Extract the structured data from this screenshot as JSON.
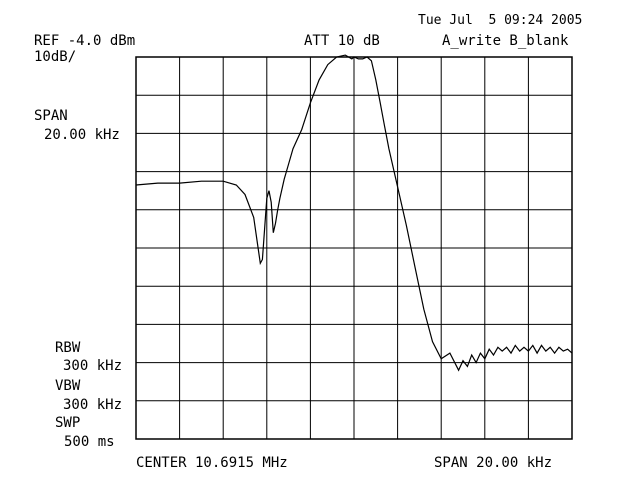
{
  "header": {
    "ref_level": "REF -4.0 dBm",
    "scale": "10dB/",
    "attenuation": "ATT 10 dB",
    "timestamp": "Tue Jul  5 09:24 2005",
    "trace_mode": "A_write B_blank"
  },
  "left_panel": {
    "span_title": "SPAN",
    "span_value": "20.00 kHz",
    "rbw_title": "RBW",
    "rbw_value": "300 kHz",
    "vbw_title": "VBW",
    "vbw_value": "300 kHz",
    "swp_title": "SWP",
    "swp_value": "500 ms"
  },
  "footer": {
    "center": "CENTER 10.6915 MHz",
    "span": "SPAN 20.00 kHz"
  },
  "chart_data": {
    "type": "line",
    "grid": true,
    "x_divisions": 10,
    "y_divisions": 10,
    "xlim": [
      0,
      10
    ],
    "ylim": [
      -10,
      0
    ],
    "xlabel": "",
    "ylabel": "",
    "series": [
      {
        "color": "#000000",
        "x": [
          0.0,
          0.5,
          1.0,
          1.5,
          2.0,
          2.3,
          2.5,
          2.7,
          2.8,
          2.85,
          2.9,
          2.95,
          3.0,
          3.05,
          3.1,
          3.15,
          3.2,
          3.25,
          3.3,
          3.4,
          3.5,
          3.6,
          3.8,
          4.0,
          4.2,
          4.4,
          4.6,
          4.8,
          4.95,
          5.0,
          5.1,
          5.2,
          5.3,
          5.4,
          5.5,
          5.6,
          5.7,
          5.8,
          6.0,
          6.2,
          6.4,
          6.6,
          6.8,
          7.0,
          7.2,
          7.4,
          7.5,
          7.6,
          7.7,
          7.8,
          7.9,
          8.0,
          8.1,
          8.2,
          8.3,
          8.4,
          8.5,
          8.6,
          8.7,
          8.8,
          8.9,
          9.0,
          9.1,
          9.2,
          9.3,
          9.4,
          9.5,
          9.6,
          9.7,
          9.8,
          9.9,
          10.0
        ],
        "y": [
          -3.35,
          -3.3,
          -3.3,
          -3.25,
          -3.25,
          -3.35,
          -3.6,
          -4.2,
          -5.0,
          -5.4,
          -5.3,
          -4.5,
          -3.7,
          -3.5,
          -3.8,
          -4.6,
          -4.35,
          -4.0,
          -3.7,
          -3.2,
          -2.8,
          -2.4,
          -1.9,
          -1.2,
          -0.6,
          -0.2,
          0.0,
          0.05,
          -0.05,
          0.0,
          -0.05,
          -0.05,
          0.0,
          -0.1,
          -0.6,
          -1.2,
          -1.8,
          -2.4,
          -3.4,
          -4.4,
          -5.5,
          -6.6,
          -7.45,
          -7.9,
          -7.75,
          -8.2,
          -7.95,
          -8.1,
          -7.8,
          -8.0,
          -7.75,
          -7.9,
          -7.65,
          -7.8,
          -7.6,
          -7.7,
          -7.6,
          -7.75,
          -7.55,
          -7.7,
          -7.6,
          -7.7,
          -7.55,
          -7.75,
          -7.55,
          -7.7,
          -7.6,
          -7.75,
          -7.6,
          -7.7,
          -7.65,
          -7.75
        ]
      }
    ]
  }
}
